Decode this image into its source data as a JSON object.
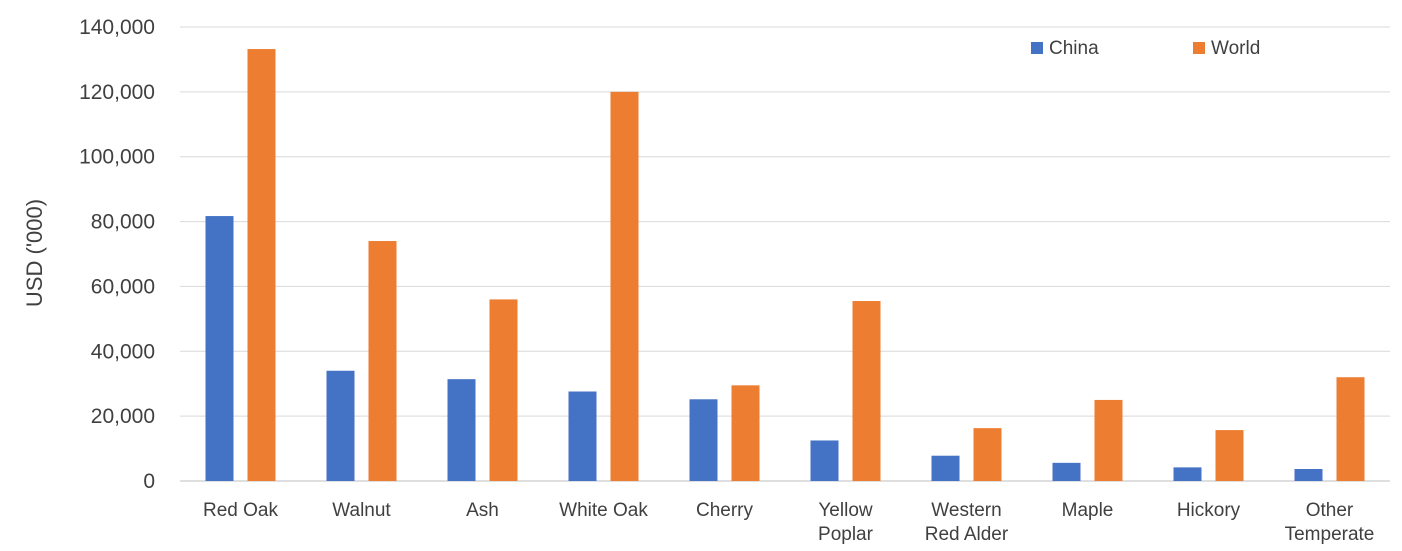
{
  "chart_data": {
    "type": "bar",
    "title": "",
    "xlabel": "",
    "ylabel": "USD ('000)",
    "ylim": [
      0,
      140000
    ],
    "yticks": [
      0,
      20000,
      40000,
      60000,
      80000,
      100000,
      120000,
      140000
    ],
    "ytick_labels": [
      "0",
      "20,000",
      "40,000",
      "60,000",
      "80,000",
      "100,000",
      "120,000",
      "140,000"
    ],
    "grid": true,
    "legend_position": "top-right",
    "categories": [
      [
        "Red Oak"
      ],
      [
        "Walnut"
      ],
      [
        "Ash"
      ],
      [
        "White Oak"
      ],
      [
        "Cherry"
      ],
      [
        "Yellow",
        "Poplar"
      ],
      [
        "Western",
        "Red Alder"
      ],
      [
        "Maple"
      ],
      [
        "Hickory"
      ],
      [
        "Other",
        "Temperate"
      ]
    ],
    "series": [
      {
        "name": "China",
        "color": "#4472C4",
        "values": [
          81700,
          34000,
          31400,
          27600,
          25200,
          12500,
          7800,
          5600,
          4200,
          3700
        ]
      },
      {
        "name": "World",
        "color": "#ED7D31",
        "values": [
          133200,
          74000,
          56000,
          120000,
          29500,
          55500,
          16300,
          25000,
          15700,
          32000
        ]
      }
    ]
  }
}
